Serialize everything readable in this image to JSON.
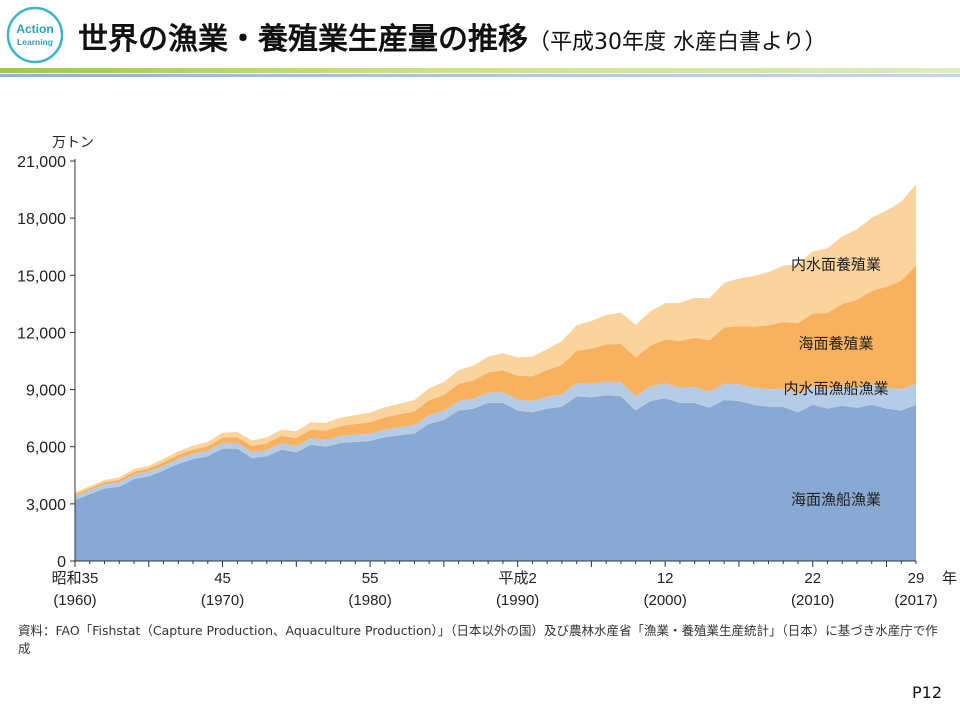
{
  "header": {
    "logo_line1": "Action",
    "logo_line2": "Learning",
    "title": "世界の漁業・養殖業生産量の推移",
    "subtitle": "（平成30年度 水産白書より）"
  },
  "chart_data": {
    "type": "area",
    "stacked": true,
    "unit_label": "万トン",
    "year_label": "年",
    "ylim": [
      0,
      21000
    ],
    "yticks": [
      0,
      3000,
      6000,
      9000,
      12000,
      15000,
      18000,
      21000
    ],
    "ytick_labels": [
      "0",
      "3,000",
      "6,000",
      "9,000",
      "12,000",
      "15,000",
      "18,000",
      "21,000"
    ],
    "xlim": [
      1960,
      2017
    ],
    "xticks": [
      {
        "year": 1960,
        "era": "昭和35",
        "western": "(1960)"
      },
      {
        "year": 1970,
        "era": "45",
        "western": "(1970)"
      },
      {
        "year": 1980,
        "era": "55",
        "western": "(1980)"
      },
      {
        "year": 1990,
        "era": "平成2",
        "western": "(1990)"
      },
      {
        "year": 2000,
        "era": "12",
        "western": "(2000)"
      },
      {
        "year": 2010,
        "era": "22",
        "western": "(2010)"
      },
      {
        "year": 2017,
        "era": "29",
        "western": "(2017)"
      }
    ],
    "x": [
      1960,
      1961,
      1962,
      1963,
      1964,
      1965,
      1966,
      1967,
      1968,
      1969,
      1970,
      1971,
      1972,
      1973,
      1974,
      1975,
      1976,
      1977,
      1978,
      1979,
      1980,
      1981,
      1982,
      1983,
      1984,
      1985,
      1986,
      1987,
      1988,
      1989,
      1990,
      1991,
      1992,
      1993,
      1994,
      1995,
      1996,
      1997,
      1998,
      1999,
      2000,
      2001,
      2002,
      2003,
      2004,
      2005,
      2006,
      2007,
      2008,
      2009,
      2010,
      2011,
      2012,
      2013,
      2014,
      2015,
      2016,
      2017
    ],
    "series": [
      {
        "name": "海面漁船漁業",
        "color": "#87a9d3",
        "values": [
          3200,
          3500,
          3800,
          3900,
          4300,
          4450,
          4750,
          5100,
          5350,
          5500,
          5900,
          5900,
          5400,
          5500,
          5850,
          5700,
          6100,
          6000,
          6200,
          6250,
          6300,
          6500,
          6600,
          6700,
          7200,
          7400,
          7900,
          8000,
          8300,
          8300,
          7900,
          7800,
          8000,
          8100,
          8650,
          8600,
          8700,
          8650,
          7900,
          8400,
          8550,
          8300,
          8300,
          8050,
          8450,
          8400,
          8200,
          8100,
          8100,
          7800,
          8200,
          8000,
          8150,
          8050,
          8200,
          8000,
          7900,
          8200
        ]
      },
      {
        "name": "内水面漁船漁業",
        "color": "#b6cce6",
        "values": [
          200,
          210,
          220,
          230,
          240,
          250,
          260,
          270,
          280,
          290,
          300,
          300,
          310,
          320,
          330,
          340,
          350,
          360,
          370,
          380,
          390,
          400,
          420,
          440,
          460,
          480,
          500,
          520,
          540,
          560,
          580,
          600,
          620,
          650,
          680,
          700,
          720,
          740,
          750,
          760,
          780,
          800,
          820,
          840,
          860,
          880,
          900,
          920,
          950,
          980,
          1000,
          1020,
          1040,
          1060,
          1080,
          1100,
          1110,
          1120
        ]
      },
      {
        "name": "海面養殖業",
        "color": "#f8b15e",
        "values": [
          100,
          110,
          120,
          130,
          150,
          160,
          180,
          200,
          220,
          240,
          280,
          300,
          330,
          360,
          390,
          420,
          450,
          480,
          520,
          560,
          600,
          640,
          680,
          720,
          780,
          840,
          900,
          960,
          1050,
          1150,
          1250,
          1300,
          1400,
          1550,
          1700,
          1850,
          1950,
          2000,
          2050,
          2150,
          2300,
          2450,
          2600,
          2700,
          2950,
          3050,
          3200,
          3350,
          3500,
          3700,
          3800,
          4000,
          4300,
          4600,
          4900,
          5300,
          5700,
          6200
        ]
      },
      {
        "name": "内水面養殖業",
        "color": "#fbd49d",
        "values": [
          100,
          110,
          120,
          130,
          140,
          150,
          170,
          190,
          210,
          230,
          250,
          270,
          290,
          310,
          330,
          350,
          380,
          410,
          440,
          470,
          500,
          530,
          560,
          590,
          630,
          670,
          720,
          780,
          840,
          900,
          960,
          1030,
          1100,
          1250,
          1350,
          1450,
          1550,
          1650,
          1700,
          1800,
          1900,
          2000,
          2100,
          2200,
          2350,
          2500,
          2650,
          2800,
          2950,
          3100,
          3250,
          3400,
          3550,
          3700,
          3850,
          4000,
          4150,
          4250
        ]
      }
    ]
  },
  "source_note": "資料：FAO「Fishstat（Capture Production、Aquaculture Production）」（日本以外の国）及び農林水産省「漁業・養殖業生産統計」（日本）に基づき水産庁で作成",
  "page_number": "P12"
}
